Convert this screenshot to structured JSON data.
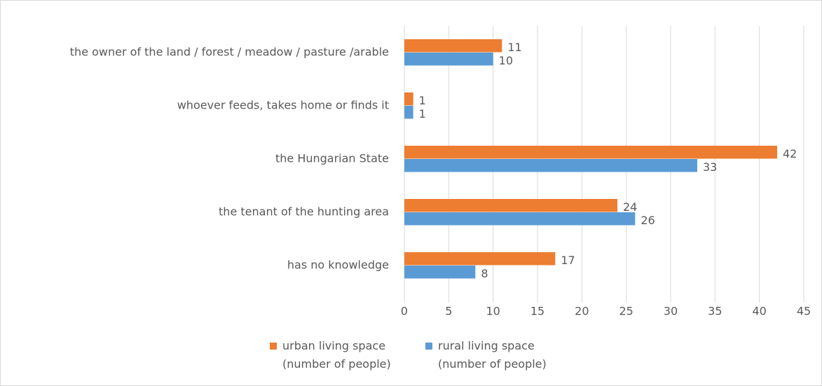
{
  "chart_data": {
    "type": "bar",
    "orientation": "horizontal",
    "categories": [
      "the owner of the land / forest / meadow / pasture /arable",
      "whoever feeds, takes home or finds it",
      "the Hungarian State",
      "the tenant of the hunting area",
      "has no knowledge"
    ],
    "series": [
      {
        "name": "urban living space (number of people)",
        "color": "#ed7d31",
        "values": [
          11,
          1,
          42,
          24,
          17
        ]
      },
      {
        "name": "rural living space (number of people)",
        "color": "#5b9bd5",
        "values": [
          10,
          1,
          33,
          26,
          8
        ]
      }
    ],
    "xlim": [
      0,
      45
    ],
    "xticks": [
      0,
      5,
      10,
      15,
      20,
      25,
      30,
      35,
      40,
      45
    ],
    "grid": true,
    "legend": "bottom"
  }
}
